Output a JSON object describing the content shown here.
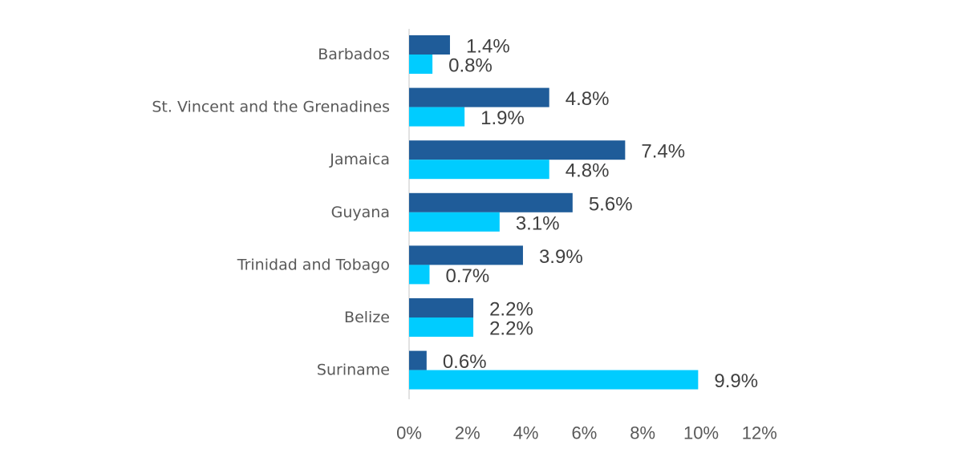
{
  "chart_data": {
    "type": "bar",
    "orientation": "horizontal",
    "categories": [
      "Barbados",
      "St. Vincent and the Grenadines",
      "Jamaica",
      "Guyana",
      "Trinidad and Tobago",
      "Belize",
      "Suriname"
    ],
    "series": [
      {
        "values": [
          1.4,
          4.8,
          7.4,
          5.6,
          3.9,
          2.2,
          0.6
        ],
        "labels": [
          "1.4%",
          "4.8%",
          "7.4%",
          "5.6%",
          "3.9%",
          "2.2%",
          "0.6%"
        ],
        "color": "#1f5c99"
      },
      {
        "values": [
          0.8,
          1.9,
          4.8,
          3.1,
          0.7,
          2.2,
          9.9
        ],
        "labels": [
          "0.8%",
          "1.9%",
          "4.8%",
          "3.1%",
          "0.7%",
          "2.2%",
          "9.9%"
        ],
        "color": "#00ccff"
      }
    ],
    "xlim": [
      0,
      12
    ],
    "xticks": [
      "0%",
      "2%",
      "4%",
      "6%",
      "8%",
      "10%",
      "12%"
    ],
    "grid": false,
    "axis_color": "#d9d9d9"
  }
}
